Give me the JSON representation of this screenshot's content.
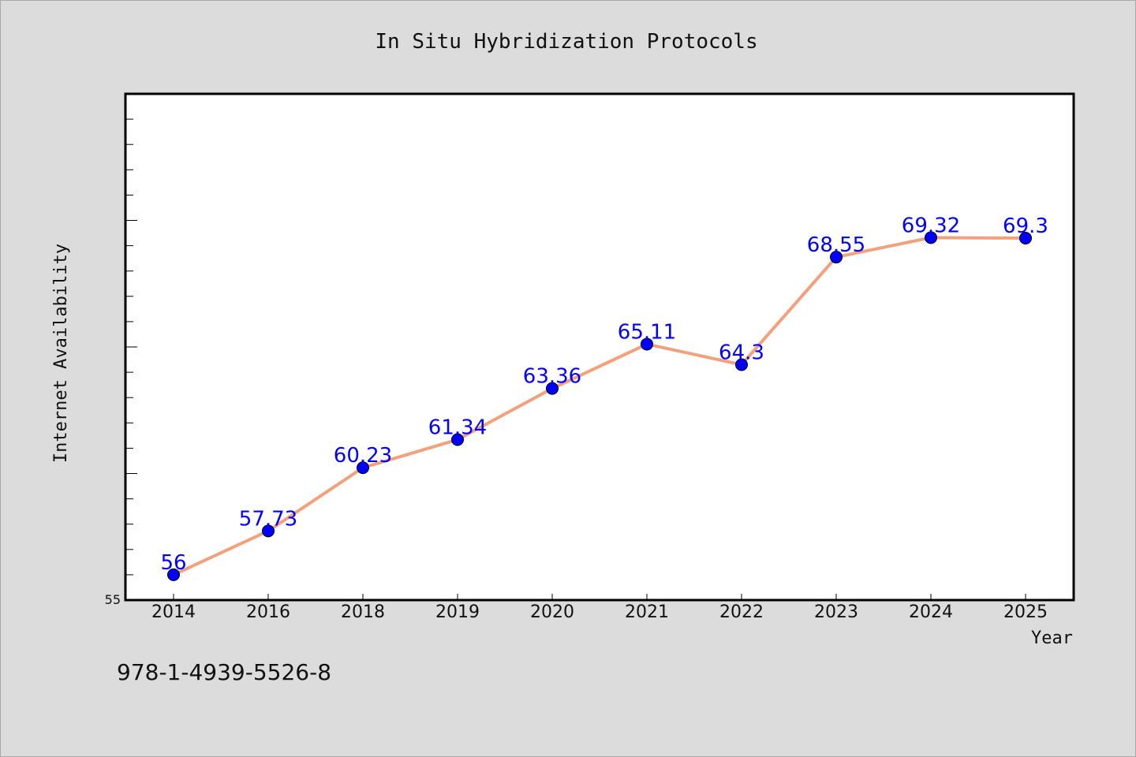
{
  "chart_data": {
    "type": "line",
    "title": "In Situ Hybridization Protocols",
    "xlabel": "Year",
    "ylabel": "Internet Availability",
    "categories": [
      "2014",
      "2016",
      "2018",
      "2019",
      "2020",
      "2021",
      "2022",
      "2023",
      "2024",
      "2025"
    ],
    "series": [
      {
        "values": [
          56,
          57.73,
          60.23,
          61.34,
          63.36,
          65.11,
          64.3,
          68.55,
          69.32,
          69.3
        ],
        "point_labels": [
          "56",
          "57.73",
          "60.23",
          "61.34",
          "63.36",
          "65.11",
          "64.3",
          "68.55",
          "69.32",
          "69.3"
        ]
      }
    ],
    "ylim": [
      55,
      75
    ],
    "ytick_labels": [
      "55"
    ],
    "grid": false,
    "colors": {
      "line": "#f4a07a",
      "marker": "#0000ff",
      "data_label": "#0000ff",
      "plot_background": "#ffffff",
      "page_background": "#dcdcdc"
    }
  },
  "footer": {
    "isbn": "978-1-4939-5526-8"
  }
}
